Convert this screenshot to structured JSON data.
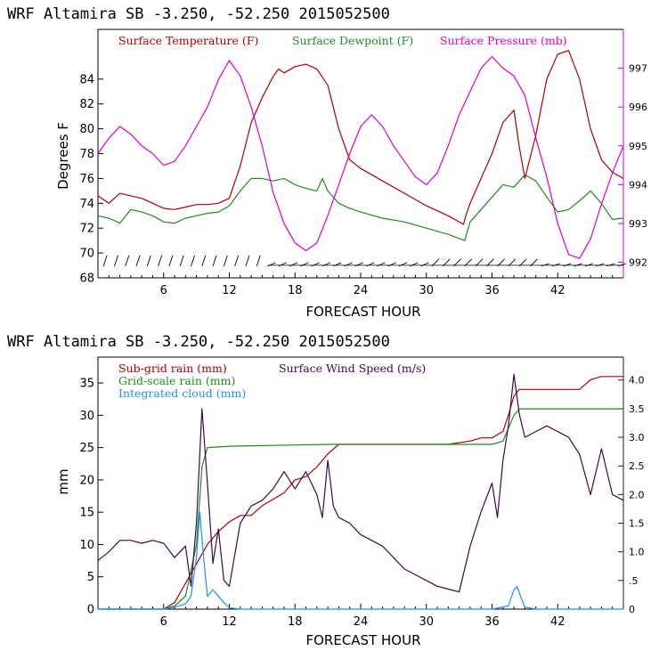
{
  "chart_data": [
    {
      "type": "line",
      "title": "WRF   Altamira  SB  -3.250, -52.250  2015052500",
      "xlabel": "FORECAST HOUR",
      "ylabel": "Degrees F",
      "xlim": [
        0,
        48
      ],
      "ylim": [
        68,
        88
      ],
      "y2lim": [
        991.6,
        998.0
      ],
      "x_ticks": [
        6,
        12,
        18,
        24,
        30,
        36,
        42
      ],
      "x_tick_labels": [
        "6",
        "12",
        "18",
        "24",
        "30",
        "36",
        "42"
      ],
      "y_ticks": [
        68,
        70,
        72,
        74,
        76,
        78,
        80,
        82,
        84
      ],
      "y_tick_labels": [
        "68",
        "70",
        "72",
        "74",
        "76",
        "78",
        "80",
        "82",
        "84"
      ],
      "y2_ticks": [
        992,
        993,
        994,
        995,
        996,
        997
      ],
      "y2_tick_labels": [
        "992",
        "993",
        "994",
        "995",
        "996",
        "997"
      ],
      "wind_barbs_y": 69.3,
      "series": [
        {
          "name": "Surface Temperature (F)",
          "axis": "left",
          "color": "#b00000",
          "x": [
            0,
            1,
            2,
            3,
            4,
            5,
            6,
            7,
            8,
            9,
            10,
            11,
            12,
            13,
            14,
            15,
            16,
            16.5,
            17,
            18,
            19,
            20,
            21,
            22,
            23,
            24,
            26,
            28,
            30,
            32,
            33.4,
            33.6,
            34,
            35,
            36,
            37,
            38,
            38.5,
            39,
            40,
            41,
            42,
            43,
            44,
            45,
            46,
            47,
            48
          ],
          "values": [
            74.6,
            74.0,
            74.8,
            74.6,
            74.4,
            74.0,
            73.6,
            73.5,
            73.7,
            73.9,
            73.9,
            74.0,
            74.4,
            77.0,
            80.5,
            82.5,
            84.2,
            84.8,
            84.5,
            85.0,
            85.2,
            84.8,
            83.5,
            80.0,
            77.5,
            76.8,
            75.8,
            74.8,
            73.8,
            73.0,
            72.3,
            73.0,
            74.0,
            76.0,
            78.0,
            80.5,
            81.5,
            78.5,
            76.0,
            79.5,
            84.0,
            86.0,
            86.3,
            84.0,
            80.0,
            77.5,
            76.5,
            76.0
          ]
        },
        {
          "name": "Surface Dewpoint (F)",
          "axis": "left",
          "color": "#228b22",
          "x": [
            0,
            1,
            2,
            3,
            4,
            5,
            6,
            7,
            8,
            9,
            10,
            11,
            12,
            13,
            14,
            15,
            16,
            17,
            18,
            19,
            20,
            20.5,
            21,
            22,
            23,
            24,
            26,
            28,
            30,
            32,
            33.5,
            34,
            35,
            36,
            37,
            38,
            39,
            40,
            41,
            42,
            43,
            44,
            45,
            46,
            47,
            48
          ],
          "values": [
            73.0,
            72.8,
            72.4,
            73.5,
            73.3,
            73.0,
            72.5,
            72.4,
            72.8,
            73.0,
            73.2,
            73.3,
            73.8,
            75.0,
            76.0,
            76.0,
            75.8,
            76.0,
            75.5,
            75.2,
            75.0,
            76.0,
            75.0,
            74.0,
            73.6,
            73.3,
            72.8,
            72.5,
            72.0,
            71.5,
            71.0,
            72.5,
            73.5,
            74.5,
            75.5,
            75.3,
            76.3,
            75.8,
            74.5,
            73.3,
            73.5,
            74.2,
            75.0,
            74.0,
            72.7,
            72.8
          ]
        },
        {
          "name": "Surface Pressure (mb)",
          "axis": "right",
          "color": "#d700d7",
          "x": [
            0,
            1,
            2,
            3,
            4,
            5,
            6,
            7,
            8,
            9,
            10,
            11,
            12,
            13,
            14,
            15,
            16,
            17,
            18,
            19,
            20,
            21,
            22,
            23,
            24,
            25,
            26,
            27,
            28,
            29,
            30,
            31,
            32,
            33,
            34,
            35,
            36,
            37,
            38,
            39,
            40,
            41,
            42,
            43,
            44,
            45,
            46,
            47,
            48
          ],
          "values": [
            994.8,
            995.2,
            995.5,
            995.3,
            995.0,
            994.8,
            994.5,
            994.6,
            995.0,
            995.5,
            996.0,
            996.7,
            997.2,
            996.8,
            996.0,
            995.0,
            993.8,
            993.0,
            992.5,
            992.3,
            992.5,
            993.2,
            994.0,
            994.8,
            995.5,
            995.8,
            995.5,
            995.0,
            994.6,
            994.2,
            994.0,
            994.3,
            995.0,
            995.8,
            996.4,
            997.0,
            997.3,
            997.0,
            996.8,
            996.3,
            995.2,
            994.2,
            993.0,
            992.2,
            992.1,
            992.6,
            993.5,
            994.3,
            995.0
          ]
        }
      ]
    },
    {
      "type": "line",
      "title": "WRF   Altamira  SB  -3.250, -52.250  2015052500",
      "xlabel": "FORECAST HOUR",
      "ylabel": "mm",
      "xlim": [
        0,
        48
      ],
      "ylim": [
        0,
        39
      ],
      "y2lim": [
        0,
        4.4
      ],
      "x_ticks": [
        6,
        12,
        18,
        24,
        30,
        36,
        42
      ],
      "x_tick_labels": [
        "6",
        "12",
        "18",
        "24",
        "30",
        "36",
        "42"
      ],
      "y_ticks": [
        0,
        5,
        10,
        15,
        20,
        25,
        30,
        35
      ],
      "y_tick_labels": [
        "0",
        "5",
        "10",
        "15",
        "20",
        "25",
        "30",
        "35"
      ],
      "y2_ticks": [
        0,
        0.5,
        1,
        1.5,
        2,
        2.5,
        3,
        3.5,
        4
      ],
      "y2_tick_labels": [
        "0",
        ".5",
        "1.0",
        "1.5",
        "2.0",
        "2.5",
        "3.0",
        "3.5",
        "4.0"
      ],
      "series": [
        {
          "name": "Sub-grid rain (mm)",
          "axis": "left",
          "color": "#b00000",
          "x": [
            0,
            6,
            7,
            8,
            9,
            10,
            11,
            12,
            13,
            14,
            15,
            16,
            17,
            18,
            19,
            20,
            21,
            22,
            23,
            24,
            26,
            28,
            30,
            32,
            34,
            35,
            36,
            36.5,
            37,
            37.5,
            38,
            38.5,
            39,
            40,
            42,
            44,
            45,
            46,
            47,
            48
          ],
          "values": [
            0,
            0,
            1,
            4,
            7,
            10,
            12,
            13.5,
            14.5,
            14.5,
            16,
            17,
            18,
            20,
            20.5,
            22,
            24,
            25.5,
            25.5,
            25.5,
            25.5,
            25.5,
            25.5,
            25.5,
            26,
            26.5,
            26.5,
            27,
            27.5,
            30,
            33,
            34,
            34,
            34,
            34,
            34,
            35.5,
            36,
            36,
            36
          ]
        },
        {
          "name": "Grid-scale rain (mm)",
          "axis": "left",
          "color": "#228b22",
          "x": [
            0,
            6,
            7,
            8,
            9,
            9.5,
            10,
            11,
            12,
            15,
            18,
            21,
            24,
            27,
            30,
            33,
            36,
            37,
            37.5,
            38,
            38.5,
            39,
            40,
            42,
            44,
            46,
            48
          ],
          "values": [
            0,
            0,
            0.5,
            2,
            10,
            22,
            25,
            25.1,
            25.2,
            25.3,
            25.4,
            25.5,
            25.5,
            25.5,
            25.5,
            25.5,
            25.5,
            26,
            28,
            30,
            31,
            31,
            31,
            31,
            31,
            31,
            31
          ]
        },
        {
          "name": "Integrated cloud (mm)",
          "axis": "left",
          "color": "#1e90ff",
          "x": [
            0,
            6,
            7,
            8,
            8.5,
            9,
            9.3,
            9.6,
            10,
            10.5,
            11,
            11.5,
            12,
            13,
            14,
            18,
            24,
            30,
            36,
            37.5,
            38,
            38.3,
            38.6,
            39,
            40,
            48
          ],
          "values": [
            0,
            0,
            0.3,
            0.8,
            2,
            8,
            15,
            9,
            2,
            3,
            2,
            1,
            0.2,
            0,
            0,
            0,
            0,
            0,
            0,
            0.5,
            3,
            3.5,
            2,
            0.3,
            0,
            0
          ]
        },
        {
          "name": "Surface Wind Speed (m/s)",
          "axis": "right",
          "color": "#3b0a45",
          "x": [
            0,
            1,
            2,
            3,
            4,
            5,
            6,
            7,
            8,
            8.5,
            9,
            9.5,
            10,
            10.5,
            11,
            11.5,
            12,
            13,
            14,
            15,
            16,
            17,
            18,
            19,
            20,
            20.5,
            21,
            21.5,
            22,
            23,
            24,
            25,
            26,
            27,
            28,
            29,
            30,
            31,
            32,
            33,
            34,
            35,
            36,
            36.5,
            37,
            37.5,
            38,
            38.5,
            39,
            40,
            41,
            42,
            43,
            44,
            45,
            46,
            47,
            48
          ],
          "values": [
            0.85,
            1.0,
            1.2,
            1.2,
            1.15,
            1.2,
            1.15,
            0.9,
            1.1,
            0.4,
            1.5,
            3.5,
            2.2,
            0.8,
            1.4,
            0.5,
            0.4,
            1.5,
            1.8,
            1.9,
            2.1,
            2.4,
            2.1,
            2.4,
            2.0,
            1.6,
            2.6,
            1.8,
            1.6,
            1.5,
            1.3,
            1.2,
            1.1,
            0.9,
            0.7,
            0.6,
            0.5,
            0.4,
            0.35,
            0.3,
            1.1,
            1.7,
            2.2,
            1.6,
            2.6,
            3.2,
            4.1,
            3.4,
            3.0,
            3.1,
            3.2,
            3.1,
            3.0,
            2.7,
            2.0,
            2.8,
            2.0,
            1.9
          ]
        }
      ]
    }
  ]
}
